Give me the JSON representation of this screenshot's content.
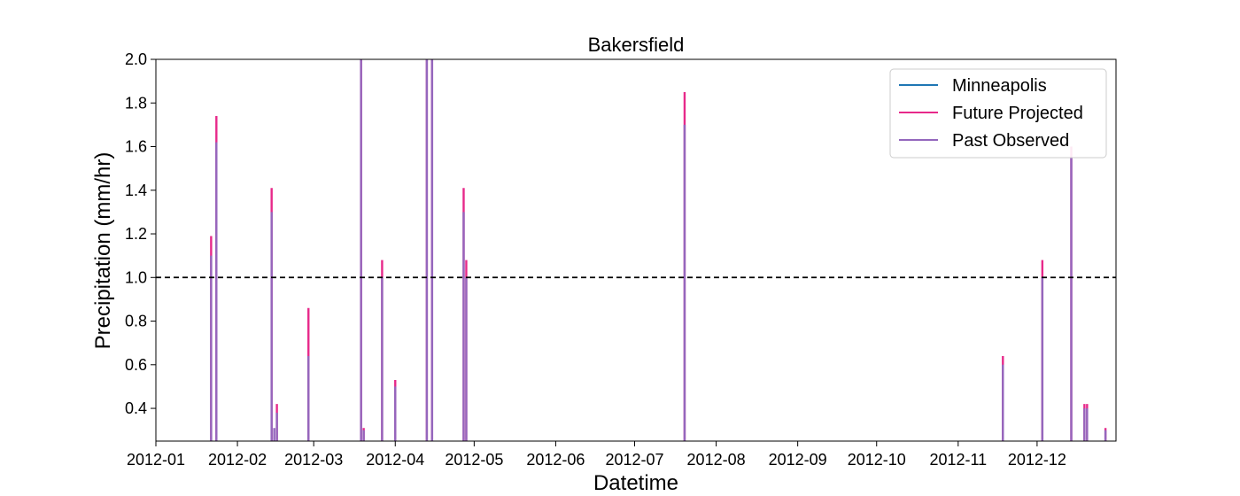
{
  "chart_data": {
    "type": "line",
    "title": "Bakersfield",
    "xlabel": "Datetime",
    "ylabel": "Precipitation (mm/hr)",
    "xlim": [
      "2012-01-01",
      "2012-12-31"
    ],
    "ylim": [
      0.25,
      2.0
    ],
    "x_ticks": [
      "2012-01",
      "2012-02",
      "2012-03",
      "2012-04",
      "2012-05",
      "2012-06",
      "2012-07",
      "2012-08",
      "2012-09",
      "2012-10",
      "2012-11",
      "2012-12"
    ],
    "y_ticks": [
      "0.4",
      "0.6",
      "0.8",
      "1.0",
      "1.2",
      "1.4",
      "1.6",
      "1.8",
      "2.0"
    ],
    "y_tick_values": [
      0.4,
      0.6,
      0.8,
      1.0,
      1.2,
      1.4,
      1.6,
      1.8,
      2.0
    ],
    "threshold": {
      "value": 1.0,
      "style": "dashed",
      "color": "#000000"
    },
    "legend_position": "top-right",
    "grid": false,
    "series": [
      {
        "name": "Minneapolis",
        "color": "#1f77b4",
        "points": []
      },
      {
        "name": "Future Projected",
        "color": "#e7298a",
        "points": [
          [
            "2012-01-22",
            1.19
          ],
          [
            "2012-01-24",
            1.74
          ],
          [
            "2012-02-14",
            1.41
          ],
          [
            "2012-02-16",
            0.42
          ],
          [
            "2012-02-28",
            0.86
          ],
          [
            "2012-03-19",
            2.0
          ],
          [
            "2012-03-20",
            0.31
          ],
          [
            "2012-03-27",
            1.08
          ],
          [
            "2012-04-01",
            0.53
          ],
          [
            "2012-04-13",
            2.0
          ],
          [
            "2012-04-15",
            2.0
          ],
          [
            "2012-04-27",
            1.41
          ],
          [
            "2012-04-28",
            1.08
          ],
          [
            "2012-07-20",
            1.85
          ],
          [
            "2012-11-18",
            0.64
          ],
          [
            "2012-12-03",
            1.08
          ],
          [
            "2012-12-14",
            1.6
          ],
          [
            "2012-12-19",
            0.42
          ],
          [
            "2012-12-20",
            0.42
          ],
          [
            "2012-12-27",
            0.31
          ]
        ]
      },
      {
        "name": "Past Observed",
        "color": "#9467bd",
        "points": [
          [
            "2012-01-22",
            1.1
          ],
          [
            "2012-01-24",
            1.62
          ],
          [
            "2012-02-14",
            1.3
          ],
          [
            "2012-02-15",
            0.31
          ],
          [
            "2012-02-16",
            0.38
          ],
          [
            "2012-02-28",
            0.64
          ],
          [
            "2012-03-19",
            2.0
          ],
          [
            "2012-03-20",
            0.3
          ],
          [
            "2012-03-27",
            1.0
          ],
          [
            "2012-04-01",
            0.5
          ],
          [
            "2012-04-13",
            2.0
          ],
          [
            "2012-04-15",
            2.0
          ],
          [
            "2012-04-27",
            1.3
          ],
          [
            "2012-04-28",
            1.0
          ],
          [
            "2012-07-20",
            1.7
          ],
          [
            "2012-11-18",
            0.6
          ],
          [
            "2012-12-03",
            1.0
          ],
          [
            "2012-12-14",
            1.55
          ],
          [
            "2012-12-19",
            0.4
          ],
          [
            "2012-12-20",
            0.4
          ],
          [
            "2012-12-27",
            0.3
          ]
        ]
      }
    ]
  }
}
